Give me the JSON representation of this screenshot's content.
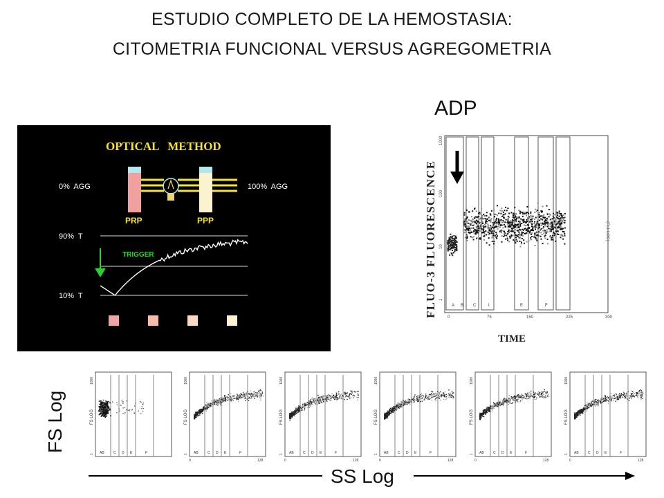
{
  "title": {
    "line1": "ESTUDIO COMPLETO DE LA HEMOSTASIA:",
    "line2": "CITOMETRIA FUNCIONAL VERSUS AGREGOMETRIA"
  },
  "adp_label": "ADP",
  "optical": {
    "heading": "OPTICAL   METHOD",
    "agg_left": "0%  AGG",
    "agg_right": "100%  AGG",
    "prp": "PRP",
    "ppp": "PPP",
    "t90": "90%  T",
    "t10": "10%  T",
    "trigger": "TRIGGER",
    "colors": {
      "heading": "#f3e23a",
      "prp": "#f1a0a0",
      "ppp": "#fbf3cf",
      "cap": "#aee9ef",
      "trigger": "#2fcf2f"
    },
    "swatches": [
      "#f2a3a3",
      "#f6bcab",
      "#fbd8c2",
      "#fbf3cf"
    ]
  },
  "flow_main": {
    "ylabel": "FLUO-3 FLUORESCENCE",
    "xlabel": "TIME",
    "x_ticks": [
      "0",
      "75",
      "150",
      "225",
      "300"
    ],
    "gate_letters": [
      "A",
      "B",
      "C",
      "I",
      "E",
      "F"
    ],
    "y_ticks": [
      "1000",
      "100",
      "10",
      "1"
    ],
    "right_text": "(FL1 LOG)"
  },
  "thumbs": {
    "ylabel": "FS LOG",
    "y_ticks": [
      "1000",
      "1"
    ],
    "x_ticks": [
      "0",
      "128"
    ],
    "gates": [
      "AB",
      "C",
      "D",
      "E",
      "F"
    ]
  },
  "axis_labels": {
    "fs": "FS Log",
    "ss": "SS Log"
  }
}
